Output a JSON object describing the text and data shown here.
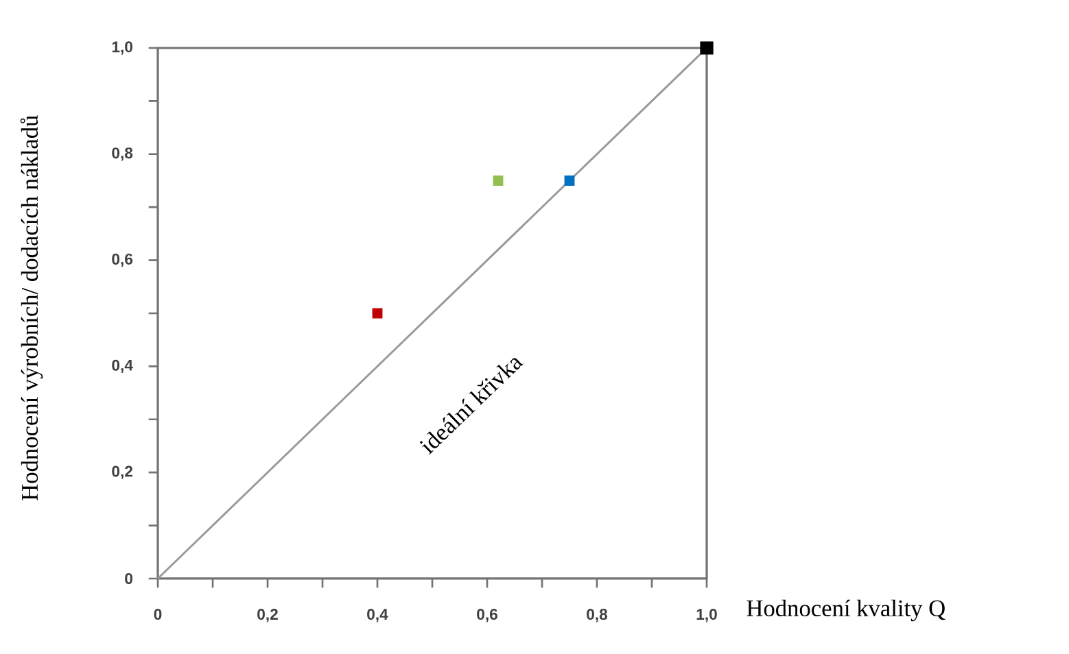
{
  "chart_data": {
    "type": "scatter",
    "xlabel": "Hodnocení kvality Q",
    "ylabel": "Hodnocení výrobních/ dodacích nákladů",
    "xlim": [
      0,
      1
    ],
    "ylim": [
      0,
      1
    ],
    "xticks": [
      {
        "value": 0,
        "label": "0"
      },
      {
        "value": 0.1,
        "label": null
      },
      {
        "value": 0.2,
        "label": "0,2"
      },
      {
        "value": 0.3,
        "label": null
      },
      {
        "value": 0.4,
        "label": "0,4"
      },
      {
        "value": 0.5,
        "label": null
      },
      {
        "value": 0.6,
        "label": "0,6"
      },
      {
        "value": 0.7,
        "label": null
      },
      {
        "value": 0.8,
        "label": "0,8"
      },
      {
        "value": 0.9,
        "label": null
      },
      {
        "value": 1,
        "label": "1,0"
      }
    ],
    "yticks": [
      {
        "value": 0,
        "label": "0"
      },
      {
        "value": 0.1,
        "label": null
      },
      {
        "value": 0.2,
        "label": "0,2"
      },
      {
        "value": 0.3,
        "label": null
      },
      {
        "value": 0.4,
        "label": "0,4"
      },
      {
        "value": 0.5,
        "label": null
      },
      {
        "value": 0.6,
        "label": "0,6"
      },
      {
        "value": 0.7,
        "label": null
      },
      {
        "value": 0.8,
        "label": "0,8"
      },
      {
        "value": 0.9,
        "label": null
      },
      {
        "value": 1,
        "label": "1,0"
      }
    ],
    "grid": false,
    "marker": "square",
    "series": [
      {
        "x": [
          0.4,
          0.62,
          0.75,
          1.0
        ],
        "values": [
          0.5,
          0.75,
          0.75,
          1.0
        ],
        "sizes": [
          0.58,
          0.58,
          0.58,
          1
        ],
        "colors": [
          "#c00000",
          "#92c050",
          "#0070c0",
          "#000000"
        ]
      },
      {
        "type": "line",
        "x": [
          0,
          1
        ],
        "values": [
          0,
          1
        ],
        "color": "#999999",
        "marker": "none"
      }
    ],
    "annotations": [
      "ideální křivka"
    ]
  }
}
